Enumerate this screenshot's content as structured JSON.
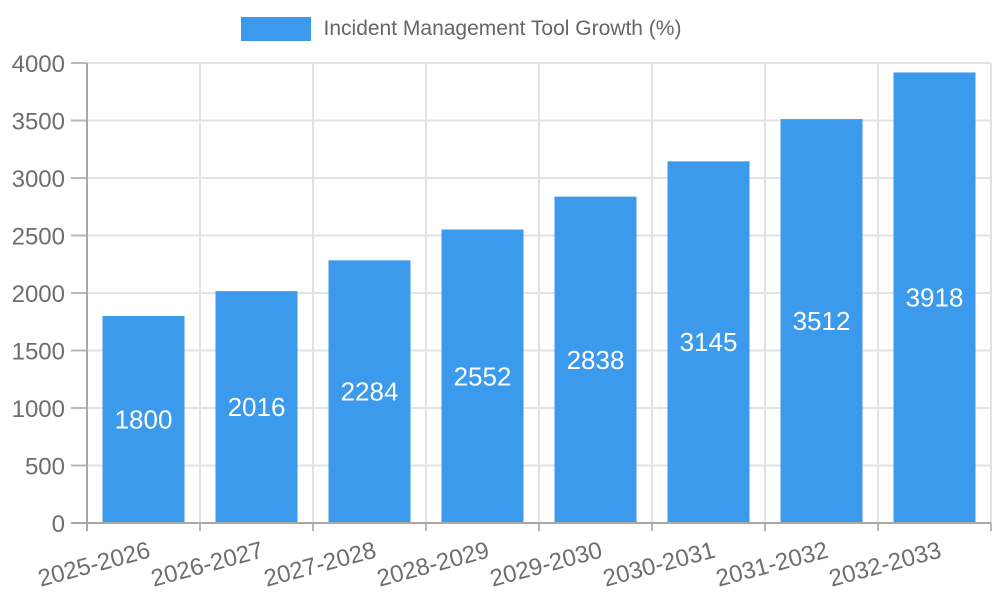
{
  "legend": {
    "label": "Incident Management Tool Growth (%)"
  },
  "chart_data": {
    "type": "bar",
    "title": "Incident Management Tool Growth (%)",
    "categories": [
      "2025-2026",
      "2026-2027",
      "2027-2028",
      "2028-2029",
      "2029-2030",
      "2030-2031",
      "2031-2032",
      "2032-2033"
    ],
    "values": [
      1800,
      2016,
      2284,
      2552,
      2838,
      3145,
      3512,
      3918
    ],
    "xlabel": "",
    "ylabel": "",
    "ylim": [
      0,
      4000
    ],
    "yticks": [
      0,
      500,
      1000,
      1500,
      2000,
      2500,
      3000,
      3500,
      4000
    ],
    "grid": true,
    "legend_position": "top-center",
    "value_labels": "inside-center"
  },
  "colors": {
    "bar": "#3C9AEC",
    "grid": "#E3E3E3",
    "axis": "#A8A8A8",
    "tick_stub": "#B8B8B8",
    "tick_label": "#6E6E6E",
    "value_label": "#FFFFFF",
    "legend_text": "#666666"
  }
}
